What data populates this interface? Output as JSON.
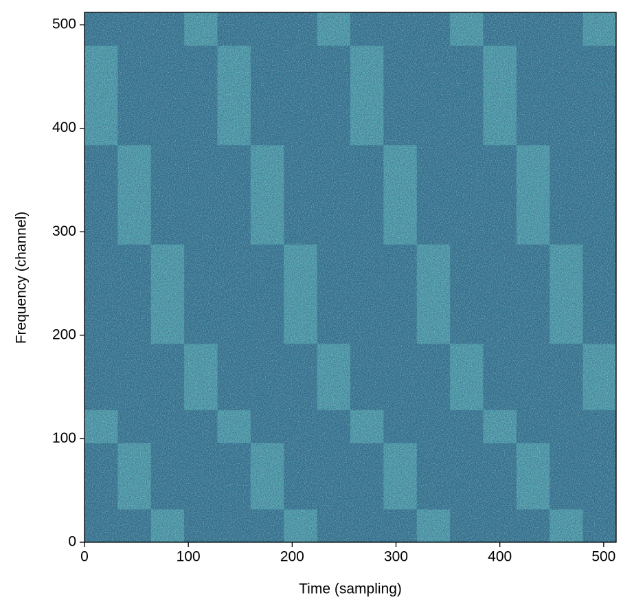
{
  "chart_data": {
    "type": "heatmap",
    "xlabel": "Time (sampling)",
    "ylabel": "Frequency (channel)",
    "xlim": [
      0,
      512
    ],
    "ylim": [
      0,
      512
    ],
    "xticks": [
      0,
      100,
      200,
      300,
      400,
      500
    ],
    "yticks": [
      0,
      100,
      200,
      300,
      400,
      500
    ],
    "colormap": [
      "#0f1a36",
      "#2d6b8a",
      "#4a9eaa",
      "#b8eedb"
    ],
    "clim": [
      0,
      1
    ],
    "values": [
      [
        0.4,
        0.4,
        0.65,
        0.4,
        0.4,
        0.4,
        0.65,
        0.4,
        0.4,
        0.4,
        0.65,
        0.4,
        0.4,
        0.4,
        0.65,
        0.4
      ],
      [
        0.4,
        0.65,
        0.4,
        0.4,
        0.4,
        0.65,
        0.4,
        0.4,
        0.4,
        0.65,
        0.4,
        0.4,
        0.4,
        0.65,
        0.4,
        0.4
      ],
      [
        0.4,
        0.65,
        0.4,
        0.4,
        0.4,
        0.65,
        0.4,
        0.4,
        0.4,
        0.65,
        0.4,
        0.4,
        0.4,
        0.65,
        0.4,
        0.4
      ],
      [
        0.65,
        0.4,
        0.4,
        0.4,
        0.65,
        0.4,
        0.4,
        0.4,
        0.65,
        0.4,
        0.4,
        0.4,
        0.65,
        0.4,
        0.4,
        0.4
      ],
      [
        0.4,
        0.4,
        0.4,
        0.65,
        0.4,
        0.4,
        0.4,
        0.65,
        0.4,
        0.4,
        0.4,
        0.65,
        0.4,
        0.4,
        0.4,
        0.65
      ],
      [
        0.4,
        0.4,
        0.4,
        0.65,
        0.4,
        0.4,
        0.4,
        0.65,
        0.4,
        0.4,
        0.4,
        0.65,
        0.4,
        0.4,
        0.4,
        0.65
      ],
      [
        0.4,
        0.4,
        0.65,
        0.4,
        0.4,
        0.4,
        0.65,
        0.4,
        0.4,
        0.4,
        0.65,
        0.4,
        0.4,
        0.4,
        0.65,
        0.4
      ],
      [
        0.4,
        0.4,
        0.65,
        0.4,
        0.4,
        0.4,
        0.65,
        0.4,
        0.4,
        0.4,
        0.65,
        0.4,
        0.4,
        0.4,
        0.65,
        0.4
      ],
      [
        0.4,
        0.4,
        0.65,
        0.4,
        0.4,
        0.4,
        0.65,
        0.4,
        0.4,
        0.4,
        0.65,
        0.4,
        0.4,
        0.4,
        0.65,
        0.4
      ],
      [
        0.4,
        0.65,
        0.4,
        0.4,
        0.4,
        0.65,
        0.4,
        0.4,
        0.4,
        0.65,
        0.4,
        0.4,
        0.4,
        0.65,
        0.4,
        0.4
      ],
      [
        0.4,
        0.65,
        0.4,
        0.4,
        0.4,
        0.65,
        0.4,
        0.4,
        0.4,
        0.65,
        0.4,
        0.4,
        0.4,
        0.65,
        0.4,
        0.4
      ],
      [
        0.4,
        0.65,
        0.4,
        0.4,
        0.4,
        0.65,
        0.4,
        0.4,
        0.4,
        0.65,
        0.4,
        0.4,
        0.4,
        0.65,
        0.4,
        0.4
      ],
      [
        0.65,
        0.4,
        0.4,
        0.4,
        0.65,
        0.4,
        0.4,
        0.4,
        0.65,
        0.4,
        0.4,
        0.4,
        0.65,
        0.4,
        0.4,
        0.4
      ],
      [
        0.65,
        0.4,
        0.4,
        0.4,
        0.65,
        0.4,
        0.4,
        0.4,
        0.65,
        0.4,
        0.4,
        0.4,
        0.65,
        0.4,
        0.4,
        0.4
      ],
      [
        0.65,
        0.4,
        0.4,
        0.4,
        0.65,
        0.4,
        0.4,
        0.4,
        0.65,
        0.4,
        0.4,
        0.4,
        0.65,
        0.4,
        0.4,
        0.4
      ],
      [
        0.4,
        0.4,
        0.4,
        0.65,
        0.4,
        0.4,
        0.4,
        0.65,
        0.4,
        0.4,
        0.4,
        0.65,
        0.4,
        0.4,
        0.4,
        0.65
      ]
    ]
  }
}
